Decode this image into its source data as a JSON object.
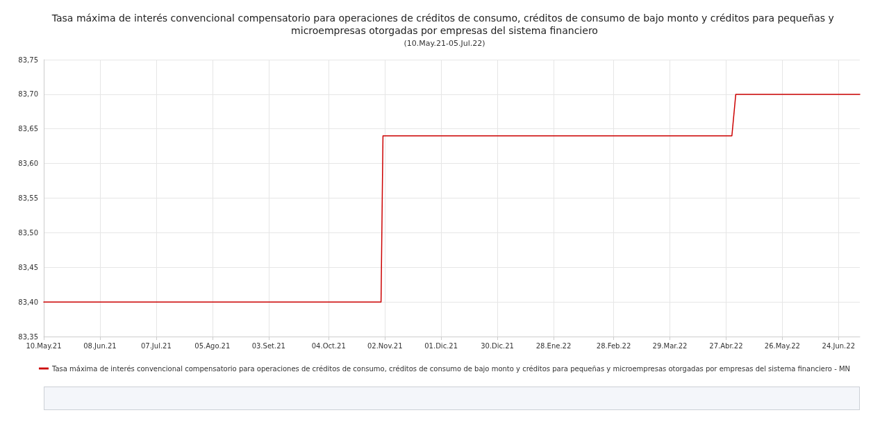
{
  "chart_data": {
    "type": "line",
    "title": "Tasa máxima de interés convencional compensatorio para operaciones de créditos de consumo, créditos de consumo de bajo monto y créditos para pequeñas y microempresas otorgadas por empresas del sistema financiero",
    "subtitle": "(10.May.21-05.Jul.22)",
    "series": [
      {
        "name": "Tasa máxima de interés convencional compensatorio para operaciones de créditos de consumo, créditos de consumo de bajo monto y créditos para pequeñas y microempresas otorgadas por empresas del sistema financiero - MN",
        "color": "#cc0000",
        "x": [
          "2021-05-10",
          "2021-10-31",
          "2021-11-01",
          "2022-04-30",
          "2022-05-02",
          "2022-07-05"
        ],
        "values": [
          83.4,
          83.4,
          83.64,
          83.64,
          83.7,
          83.7
        ]
      }
    ],
    "xlim": [
      "2021-05-10",
      "2022-07-05"
    ],
    "xticks": [
      {
        "value": "2021-05-10",
        "label": "10.May.21"
      },
      {
        "value": "2021-06-08",
        "label": "08.Jun.21"
      },
      {
        "value": "2021-07-07",
        "label": "07.Jul.21"
      },
      {
        "value": "2021-08-05",
        "label": "05.Ago.21"
      },
      {
        "value": "2021-09-03",
        "label": "03.Set.21"
      },
      {
        "value": "2021-10-04",
        "label": "04.Oct.21"
      },
      {
        "value": "2021-11-02",
        "label": "02.Nov.21"
      },
      {
        "value": "2021-12-01",
        "label": "01.Dic.21"
      },
      {
        "value": "2021-12-30",
        "label": "30.Dic.21"
      },
      {
        "value": "2022-01-28",
        "label": "28.Ene.22"
      },
      {
        "value": "2022-02-28",
        "label": "28.Feb.22"
      },
      {
        "value": "2022-03-29",
        "label": "29.Mar.22"
      },
      {
        "value": "2022-04-27",
        "label": "27.Abr.22"
      },
      {
        "value": "2022-05-26",
        "label": "26.May.22"
      },
      {
        "value": "2022-06-24",
        "label": "24.Jun.22"
      }
    ],
    "ylim": [
      83.35,
      83.75
    ],
    "yticks": [
      {
        "value": 83.35,
        "label": "83,35"
      },
      {
        "value": 83.4,
        "label": "83,40"
      },
      {
        "value": 83.45,
        "label": "83,45"
      },
      {
        "value": 83.5,
        "label": "83,50"
      },
      {
        "value": 83.55,
        "label": "83,55"
      },
      {
        "value": 83.6,
        "label": "83,60"
      },
      {
        "value": 83.65,
        "label": "83,65"
      },
      {
        "value": 83.7,
        "label": "83,70"
      },
      {
        "value": 83.75,
        "label": "83,75"
      }
    ],
    "grid": true,
    "legend": "bottom",
    "marker": "none",
    "line_style": "solid"
  }
}
